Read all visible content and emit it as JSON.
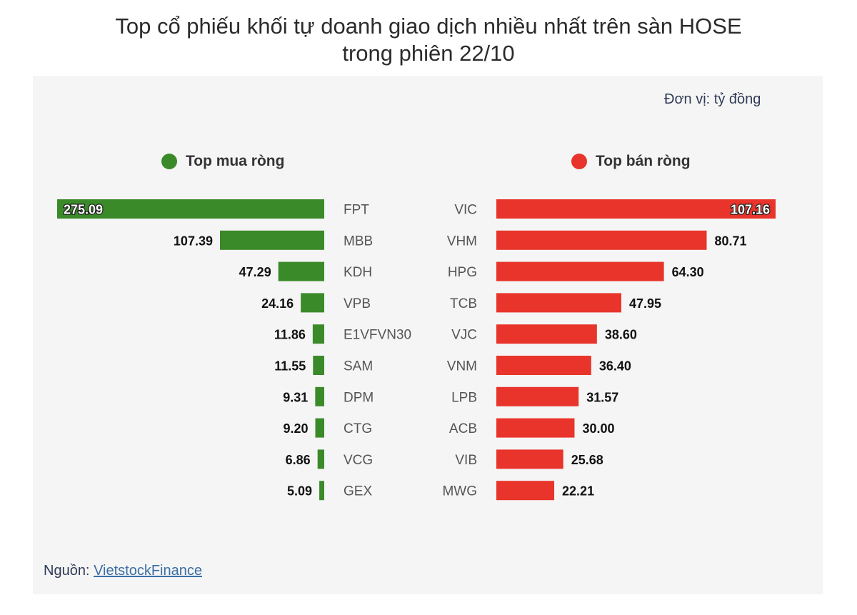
{
  "title_line1": "Top cổ phiếu khối tự doanh giao dịch nhiều nhất trên sàn HOSE",
  "title_line2": "trong phiên 22/10",
  "unit": "Đơn vị: tỷ đồng",
  "source_label": "Nguồn:",
  "source_link": "VietstockFinance",
  "colors": {
    "buy": "#3a8a2a",
    "sell": "#e8342a",
    "background": "#f5f5f5"
  },
  "chart_data": [
    {
      "type": "bar",
      "title": "Top mua ròng",
      "categories": [
        "FPT",
        "MBB",
        "KDH",
        "VPB",
        "E1VFVN30",
        "SAM",
        "DPM",
        "CTG",
        "VCG",
        "GEX"
      ],
      "values": [
        275.09,
        107.39,
        47.29,
        24.16,
        11.86,
        11.55,
        9.31,
        9.2,
        6.86,
        5.09
      ],
      "labels": [
        "275.09",
        "107.39",
        "47.29",
        "24.16",
        "11.86",
        "11.55",
        "9.31",
        "9.20",
        "6.86",
        "5.09"
      ],
      "orientation": "horizontal",
      "direction": "leftward"
    },
    {
      "type": "bar",
      "title": "Top bán ròng",
      "categories": [
        "VIC",
        "VHM",
        "HPG",
        "TCB",
        "VJC",
        "VNM",
        "LPB",
        "ACB",
        "VIB",
        "MWG"
      ],
      "values": [
        107.16,
        80.71,
        64.3,
        47.95,
        38.6,
        36.4,
        31.57,
        30.0,
        25.68,
        22.21
      ],
      "labels": [
        "107.16",
        "80.71",
        "64.30",
        "47.95",
        "38.60",
        "36.40",
        "31.57",
        "30.00",
        "25.68",
        "22.21"
      ],
      "orientation": "horizontal",
      "direction": "rightward"
    }
  ]
}
